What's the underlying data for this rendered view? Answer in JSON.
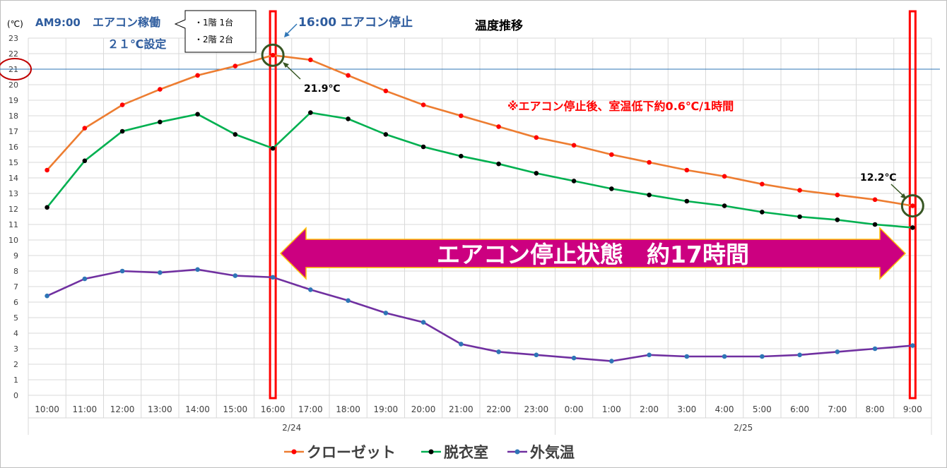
{
  "chart_data": {
    "type": "line",
    "title": "温度推移",
    "ylabel": "(℃)",
    "ylim": [
      0,
      23
    ],
    "yticks": [
      0,
      1,
      2,
      3,
      4,
      5,
      6,
      7,
      8,
      9,
      10,
      11,
      12,
      13,
      14,
      15,
      16,
      17,
      18,
      19,
      20,
      21,
      22,
      23
    ],
    "grid": true,
    "legend_position": "bottom",
    "categories": [
      "10:00",
      "11:00",
      "12:00",
      "13:00",
      "14:00",
      "15:00",
      "16:00",
      "17:00",
      "18:00",
      "19:00",
      "20:00",
      "21:00",
      "22:00",
      "23:00",
      "0:00",
      "1:00",
      "2:00",
      "3:00",
      "4:00",
      "5:00",
      "6:00",
      "7:00",
      "8:00",
      "9:00"
    ],
    "date_groups": [
      {
        "label": "2/24",
        "start": 0,
        "end": 13
      },
      {
        "label": "2/25",
        "start": 14,
        "end": 23
      }
    ],
    "series": [
      {
        "name": "クローゼット",
        "color": "#ED7D31",
        "marker_color": "#FF0000",
        "values": [
          14.5,
          17.2,
          18.7,
          19.7,
          20.6,
          21.2,
          21.9,
          21.6,
          20.6,
          19.6,
          18.7,
          18.0,
          17.3,
          16.6,
          16.1,
          15.5,
          15.0,
          14.5,
          14.1,
          13.6,
          13.2,
          12.9,
          12.6,
          12.2
        ]
      },
      {
        "name": "脱衣室",
        "color": "#00B050",
        "marker_color": "#000000",
        "values": [
          12.1,
          15.1,
          17.0,
          17.6,
          18.1,
          16.8,
          15.9,
          18.2,
          17.8,
          16.8,
          16.0,
          15.4,
          14.9,
          14.3,
          13.8,
          13.3,
          12.9,
          12.5,
          12.2,
          11.8,
          11.5,
          11.3,
          11.0,
          10.8
        ]
      },
      {
        "name": "外気温",
        "color": "#7030A0",
        "marker_color": "#2E75B6",
        "values": [
          6.4,
          7.5,
          8.0,
          7.9,
          8.1,
          7.7,
          7.6,
          6.8,
          6.1,
          5.3,
          4.7,
          3.3,
          2.8,
          2.6,
          2.4,
          2.2,
          2.6,
          2.5,
          2.5,
          2.5,
          2.6,
          2.8,
          3.0,
          3.2
        ]
      }
    ],
    "reference_line": {
      "value": 21,
      "label": "21",
      "color": "#2E75B6"
    },
    "annotations": {
      "ac_on_time": "AM9:00",
      "ac_on_text": "エアコン稼働",
      "ac_setting": "２１℃設定",
      "units": [
        "・1階 1台",
        "・2階 2台"
      ],
      "ac_stop": "16:00 エアコン停止",
      "peak_label": "21.9℃",
      "end_label": "12.2℃",
      "drop_note": "※エアコン停止後、室温低下約0.6℃/1時間",
      "stop_period": "エアコン停止状態　約17時間"
    },
    "colors": {
      "highlight_box": "#FF0000",
      "circle": "#375623",
      "red_circle": "#C00000",
      "arrow_fill": "#CC0080",
      "arrow_border": "#FFC000",
      "annotation_blue": "#2E5C9E",
      "note_red": "#FF0000"
    }
  }
}
